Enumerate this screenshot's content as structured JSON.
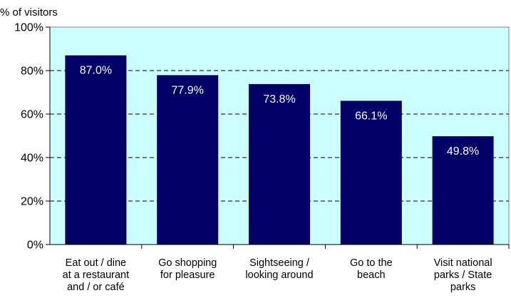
{
  "chart_data": {
    "type": "bar",
    "ylabel": "% of visitors",
    "xlabel": "",
    "title": "",
    "categories": [
      "Eat out / dine at a restaurant and / or café",
      "Go shopping for pleasure",
      "Sightseeing / looking around",
      "Go to the beach",
      "Visit national parks / State parks"
    ],
    "category_lines": [
      [
        "Eat out / dine",
        "at a restaurant",
        "and / or café"
      ],
      [
        "Go shopping",
        "for pleasure"
      ],
      [
        "Sightseeing /",
        "looking around"
      ],
      [
        "Go to the",
        "beach"
      ],
      [
        "Visit national",
        "parks / State",
        "parks"
      ]
    ],
    "values": [
      87.0,
      77.9,
      73.8,
      66.1,
      49.8
    ],
    "data_labels": [
      "87.0%",
      "77.9%",
      "73.8%",
      "66.1%",
      "49.8%"
    ],
    "ylim": [
      0,
      100
    ],
    "yticks": [
      0,
      20,
      40,
      60,
      80,
      100
    ],
    "ytick_labels": [
      "0%",
      "20%",
      "40%",
      "60%",
      "80%",
      "100%"
    ],
    "grid": "dashed horizontal",
    "colors": {
      "bar": "#000066",
      "plot_bg": "#ccffff",
      "grid": "#000000"
    }
  }
}
